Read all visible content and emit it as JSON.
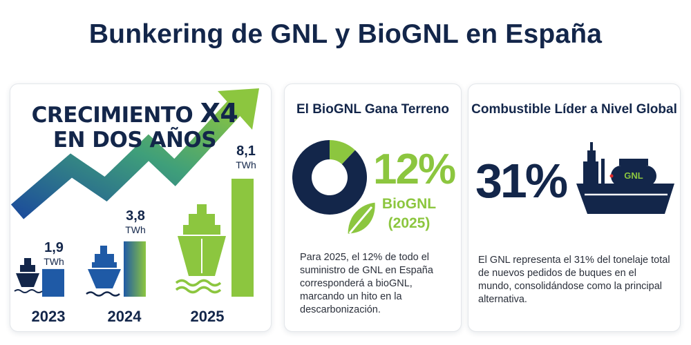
{
  "title": "Bunkering de GNL y BioGNL en España",
  "colors": {
    "navy": "#13264a",
    "green": "#8cc63f",
    "blue": "#1f5aa6"
  },
  "growth_card": {
    "headline_line1": "CRECIMIENTO",
    "headline_x4": "X4",
    "headline_line2": "EN DOS AÑOS",
    "icons": [
      "ship-icon",
      "wave-icon",
      "arrow-up-icon"
    ]
  },
  "biognl_card": {
    "title": "El BioGNL Gana Terreno",
    "percent": "12%",
    "label": "BioGNL",
    "year": "(2025)",
    "text": "Para 2025, el 12% de todo el suministro de GNL en España corresponderá a bioGNL, marcando un hito en la descarbonización.",
    "icons": [
      "leaf-icon"
    ]
  },
  "global_card": {
    "title": "Combustible Líder a Nivel Global",
    "percent": "31%",
    "ship_tag": "GNL",
    "text": "El GNL representa el 31% del tonelaje total de nuevos pedidos de buques en el mundo, consolidándose como la principal alternativa.",
    "icons": [
      "lng-ship-icon"
    ]
  },
  "chart_data": [
    {
      "type": "bar",
      "categories": [
        "2023",
        "2024",
        "2025"
      ],
      "values": [
        1.9,
        3.8,
        8.1
      ],
      "value_labels": [
        "1,9",
        "3,8",
        "8,1"
      ],
      "unit": "TWh",
      "title": "",
      "xlabel": "",
      "ylabel": "",
      "ylim": [
        0,
        9
      ],
      "grid": false
    },
    {
      "type": "pie",
      "categories": [
        "BioGNL",
        ""
      ],
      "values": [
        12,
        88
      ],
      "colors": [
        "#8cc63f",
        "#13264a"
      ],
      "donut": true
    }
  ]
}
